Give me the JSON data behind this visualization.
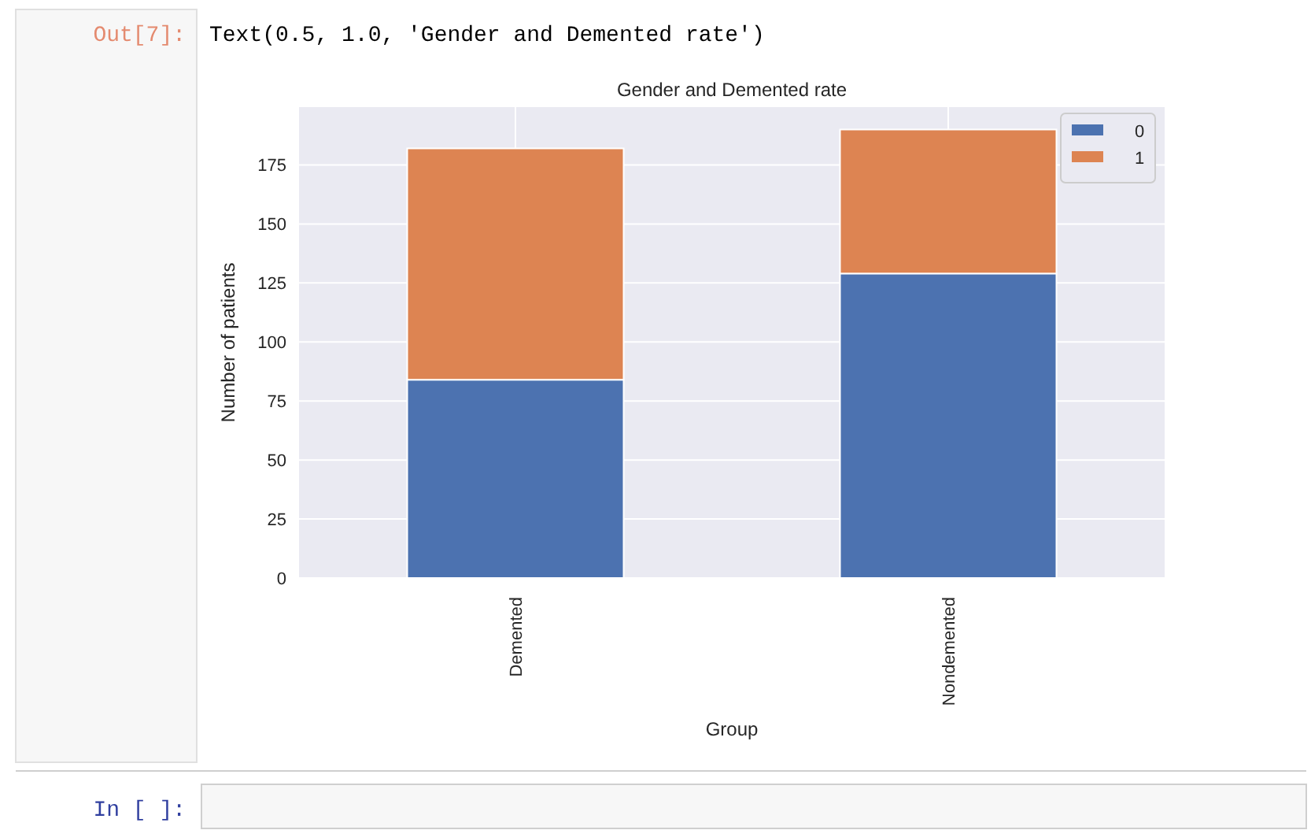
{
  "chart_data": {
    "type": "bar",
    "title": "Gender and Demented rate",
    "xlabel": "Group",
    "ylabel": "Number of patients",
    "categories": [
      "Demented",
      "Nondemented"
    ],
    "stacked": true,
    "series": [
      {
        "name": "0",
        "color": "#4c72b0",
        "values": [
          84,
          129
        ]
      },
      {
        "name": "1",
        "color": "#dd8452",
        "values": [
          98,
          61
        ]
      }
    ],
    "ylim": [
      0,
      199.5
    ],
    "yticks": [
      0,
      25,
      50,
      75,
      100,
      125,
      150,
      175
    ],
    "grid": true,
    "legend": "top right",
    "annotations": [
      "Out[7]:",
      "Text(0.5, 1.0, 'Gender and Demented rate')",
      "In [ ]:"
    ]
  }
}
